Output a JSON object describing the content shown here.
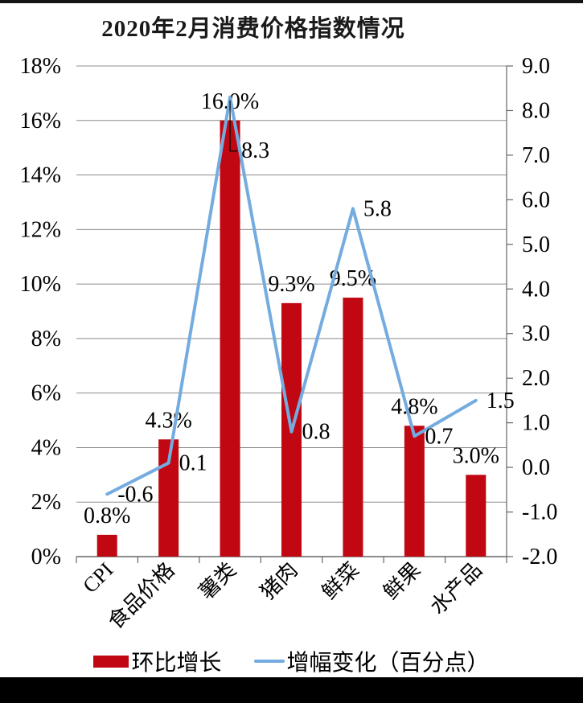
{
  "title": "2020年2月消费价格指数情况",
  "legend": {
    "bar_label": "环比增长",
    "line_label": "增幅变化（百分点）"
  },
  "colors": {
    "bar": "#C00712",
    "line": "#74ACDF",
    "grid": "#8c8c8c",
    "axis": "#666666",
    "text": "#000000",
    "leader": "#000000"
  },
  "chart_data": {
    "type": "bar",
    "subtype": "combo bar+line, dual axis",
    "title": "2020年2月消费价格指数情况",
    "categories": [
      "CPI",
      "食品价格",
      "薯类",
      "猪肉",
      "鲜菜",
      "鲜果",
      "水产品"
    ],
    "series": [
      {
        "name": "环比增长",
        "type": "bar",
        "axis": "left",
        "unit": "%",
        "values": [
          0.8,
          4.3,
          16.0,
          9.3,
          9.5,
          4.8,
          3.0
        ],
        "labels": [
          "0.8%",
          "4.3%",
          "16.0%",
          "9.3%",
          "9.5%",
          "4.8%",
          "3.0%"
        ],
        "color": "#C00712"
      },
      {
        "name": "增幅变化（百分点）",
        "type": "line",
        "axis": "right",
        "unit": "百分点",
        "values": [
          -0.6,
          0.1,
          8.3,
          0.8,
          5.8,
          0.7,
          1.5
        ],
        "labels": [
          "-0.6",
          "0.1",
          "8.3",
          "0.8",
          "5.8",
          "0.7",
          "1.5"
        ],
        "color": "#74ACDF"
      }
    ],
    "left_axis": {
      "min": 0,
      "max": 18,
      "ticks": [
        "18%",
        "16%",
        "14%",
        "12%",
        "10%",
        "8%",
        "6%",
        "4%",
        "2%",
        "0%"
      ]
    },
    "right_axis": {
      "min": -2,
      "max": 9,
      "ticks": [
        "9.0",
        "8.0",
        "7.0",
        "6.0",
        "5.0",
        "4.0",
        "3.0",
        "2.0",
        "1.0",
        "0.0",
        "-1.0",
        "-2.0"
      ]
    },
    "grid": true,
    "legend_position": "bottom"
  }
}
